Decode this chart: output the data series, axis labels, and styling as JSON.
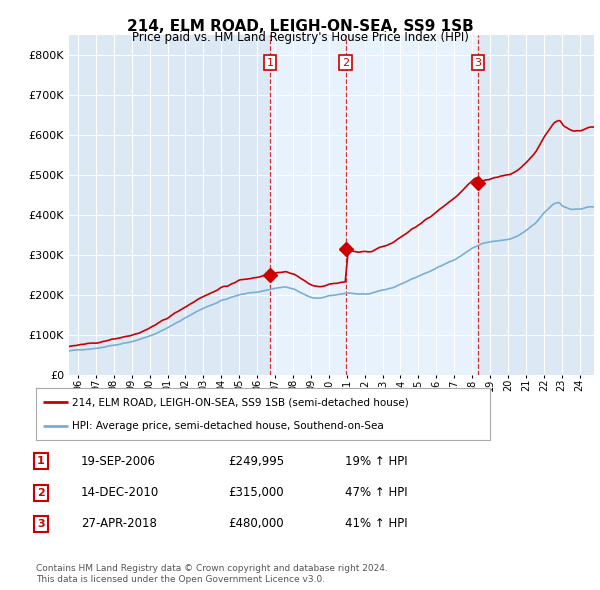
{
  "title": "214, ELM ROAD, LEIGH-ON-SEA, SS9 1SB",
  "subtitle": "Price paid vs. HM Land Registry's House Price Index (HPI)",
  "hpi_label": "HPI: Average price, semi-detached house, Southend-on-Sea",
  "property_label": "214, ELM ROAD, LEIGH-ON-SEA, SS9 1SB (semi-detached house)",
  "footer_line1": "Contains HM Land Registry data © Crown copyright and database right 2024.",
  "footer_line2": "This data is licensed under the Open Government Licence v3.0.",
  "sales": [
    {
      "date": 2006.72,
      "price": 249995,
      "label": "1"
    },
    {
      "date": 2010.95,
      "price": 315000,
      "label": "2"
    },
    {
      "date": 2018.32,
      "price": 480000,
      "label": "3"
    }
  ],
  "sale_details": [
    {
      "num": "1",
      "date": "19-SEP-2006",
      "price": "£249,995",
      "hpi": "19% ↑ HPI"
    },
    {
      "num": "2",
      "date": "14-DEC-2010",
      "price": "£315,000",
      "hpi": "47% ↑ HPI"
    },
    {
      "num": "3",
      "date": "27-APR-2018",
      "price": "£480,000",
      "hpi": "41% ↑ HPI"
    }
  ],
  "vline_dates": [
    2006.72,
    2010.95,
    2018.32
  ],
  "vline_labels": [
    "1",
    "2",
    "3"
  ],
  "ylim": [
    0,
    850000
  ],
  "xlim": [
    1995.5,
    2024.8
  ],
  "background_color": "#dce9f5",
  "shade_color": "#e8f2fc",
  "red_color": "#cc0000",
  "blue_color": "#7aafd4",
  "grid_color": "#ffffff"
}
